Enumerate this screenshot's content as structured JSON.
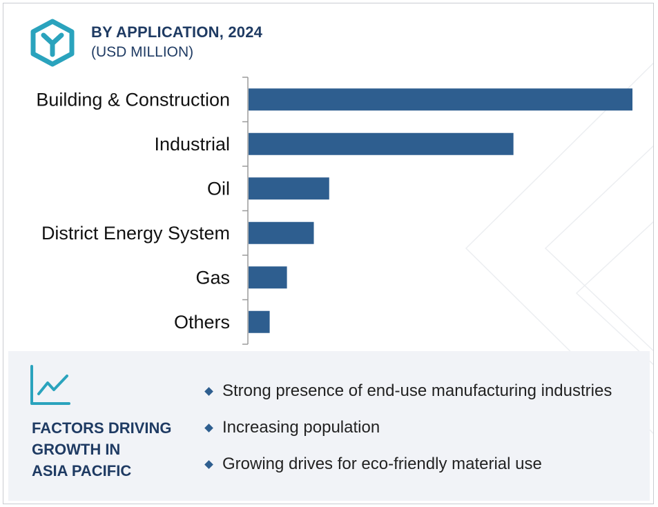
{
  "header": {
    "title": "BY APPLICATION, 2024",
    "subtitle": "(USD MILLION)",
    "icon": "hexagon-logo-icon"
  },
  "colors": {
    "bar": "#2e5e8f",
    "title": "#1f3b63",
    "icon": "#2aa3bd",
    "panel_bg": "#f1f3f7"
  },
  "chart_data": {
    "type": "bar",
    "orientation": "horizontal",
    "title": "BY APPLICATION, 2024",
    "subtitle": "(USD MILLION)",
    "categories": [
      "Building & Construction",
      "Industrial",
      "Oil",
      "District Energy System",
      "Gas",
      "Others"
    ],
    "values": [
      100,
      69,
      21,
      17,
      10,
      5.5
    ],
    "xlim": [
      0,
      100
    ],
    "value_axis_labels": "none",
    "grid": false,
    "legend": "none"
  },
  "factors": {
    "icon": "line-chart-icon",
    "title_lines": [
      "FACTORS DRIVING",
      "GROWTH IN",
      "ASIA PACIFIC"
    ],
    "bullets": [
      "Strong presence of end-use manufacturing industries",
      "Increasing population",
      "Growing drives for eco-friendly material use"
    ]
  }
}
